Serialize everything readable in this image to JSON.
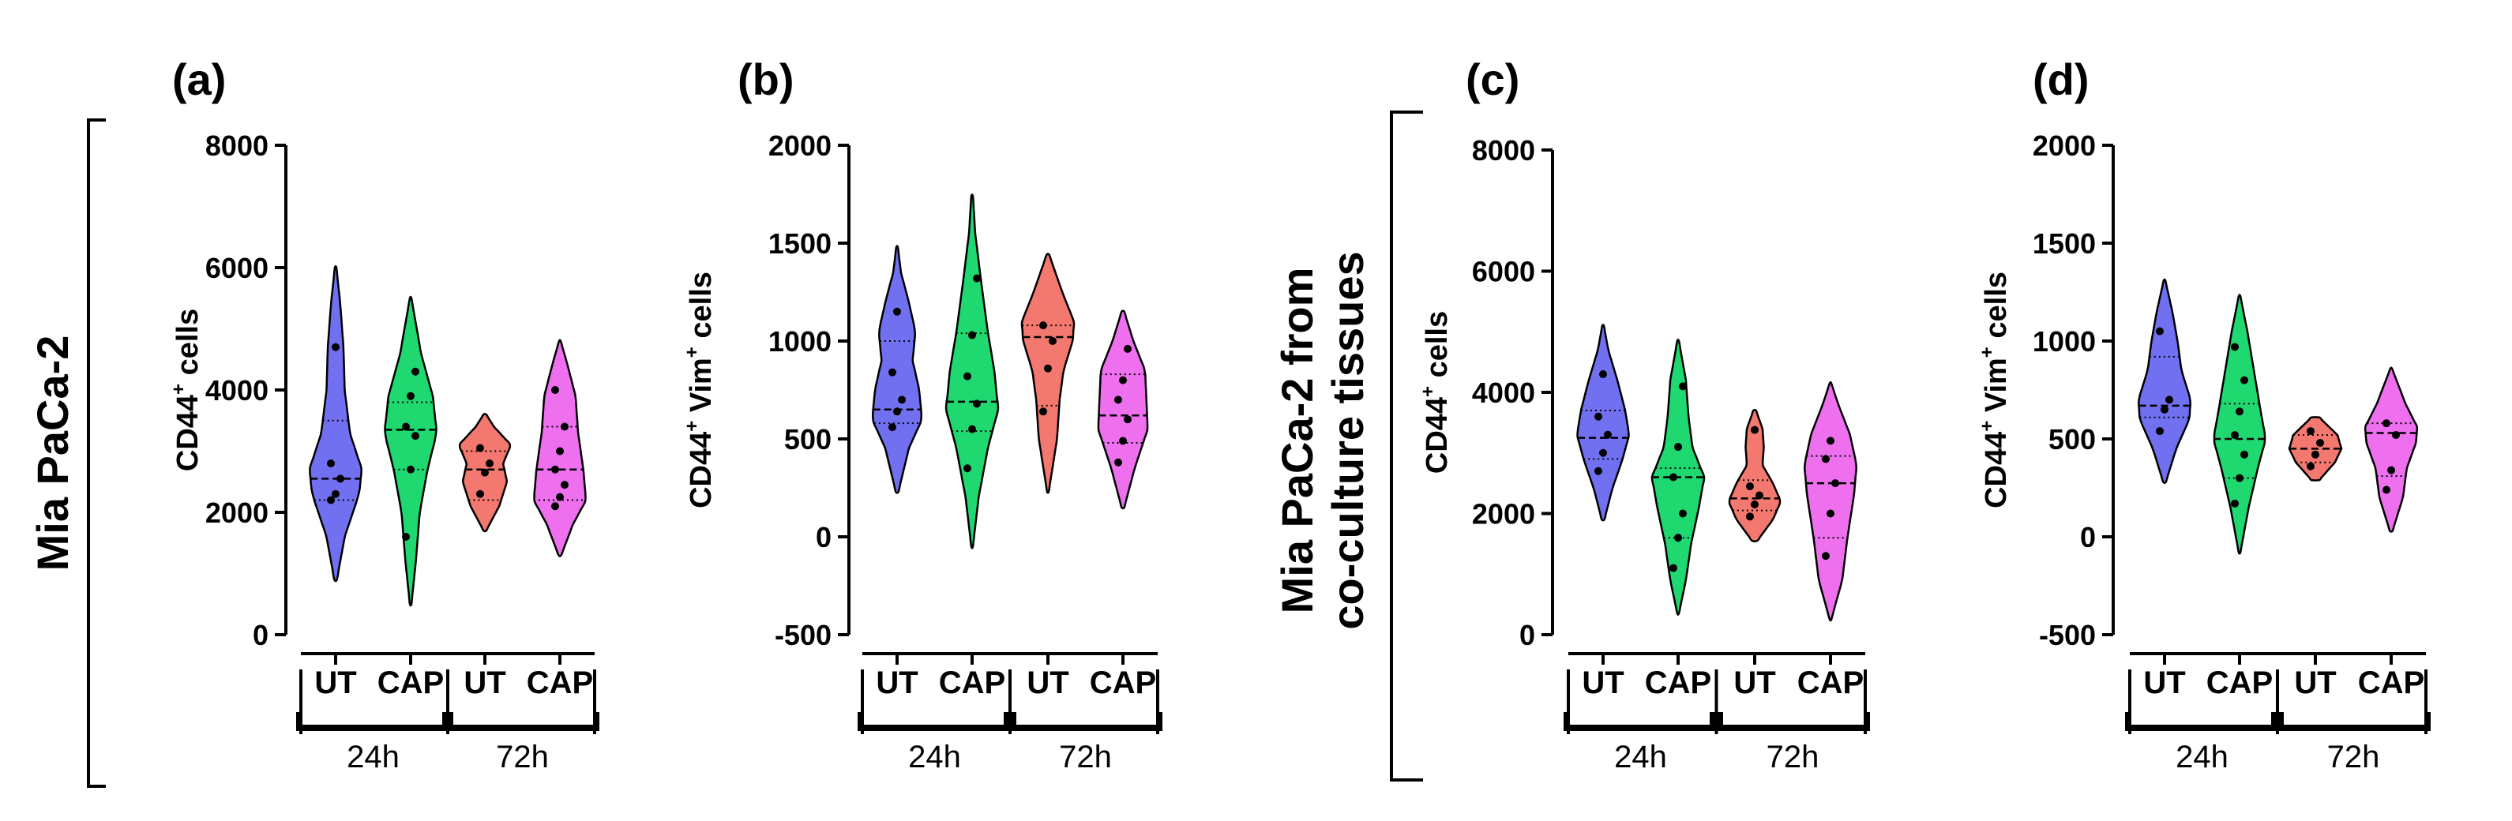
{
  "side_labels": {
    "left": "Mia  PaCa-2",
    "middle_line1": "Mia  PaCa-2 from",
    "middle_line2": "co-culture tissues"
  },
  "style": {
    "colors": [
      "#7070f0",
      "#20d870",
      "#f27870",
      "#ee70ee"
    ],
    "point_color": "#000000",
    "outline_color": "#000000"
  },
  "chart_data": [
    {
      "type": "violin",
      "panel": "(a)",
      "ylabel": {
        "main": "CD44",
        "sup": "+",
        "rest": " cells"
      },
      "ylim": [
        0,
        8000
      ],
      "yticks": [
        0,
        2000,
        4000,
        6000,
        8000
      ],
      "ytick_labels": [
        "0",
        "2000",
        "4000",
        "6000",
        "8000"
      ],
      "categories": [
        "UT",
        "CAP",
        "UT",
        "CAP"
      ],
      "groups": [
        {
          "label": "24h",
          "span": [
            0,
            1
          ]
        },
        {
          "label": "72h",
          "span": [
            2,
            3
          ]
        }
      ],
      "series": [
        {
          "name": "UT 24h",
          "min": 900,
          "max": 6000,
          "median": 2550,
          "q1": 2200,
          "q3": 3500,
          "profile": [
            [
              900,
              0.05
            ],
            [
              1600,
              0.35
            ],
            [
              2300,
              0.9
            ],
            [
              2700,
              1.0
            ],
            [
              3300,
              0.55
            ],
            [
              4000,
              0.35
            ],
            [
              4700,
              0.3
            ],
            [
              5400,
              0.18
            ],
            [
              6000,
              0.03
            ]
          ],
          "points": [
            2200,
            2300,
            2550,
            2800,
            4700
          ]
        },
        {
          "name": "CAP 24h",
          "min": 500,
          "max": 5500,
          "median": 3350,
          "q1": 2700,
          "q3": 3800,
          "profile": [
            [
              500,
              0.03
            ],
            [
              1200,
              0.2
            ],
            [
              2000,
              0.35
            ],
            [
              2700,
              0.65
            ],
            [
              3300,
              1.0
            ],
            [
              3900,
              0.85
            ],
            [
              4600,
              0.4
            ],
            [
              5500,
              0.03
            ]
          ],
          "points": [
            1600,
            2700,
            3250,
            3400,
            3900,
            4300
          ]
        },
        {
          "name": "UT 72h",
          "min": 1700,
          "max": 3600,
          "median": 2700,
          "q1": 2200,
          "q3": 3000,
          "profile": [
            [
              1700,
              0.05
            ],
            [
              2100,
              0.55
            ],
            [
              2500,
              0.85
            ],
            [
              2800,
              0.7
            ],
            [
              3100,
              1.0
            ],
            [
              3400,
              0.35
            ],
            [
              3600,
              0.05
            ]
          ],
          "points": [
            2300,
            2650,
            2800,
            3050
          ]
        },
        {
          "name": "CAP 72h",
          "min": 1300,
          "max": 4800,
          "median": 2700,
          "q1": 2200,
          "q3": 3400,
          "profile": [
            [
              1300,
              0.05
            ],
            [
              1800,
              0.5
            ],
            [
              2200,
              1.0
            ],
            [
              2700,
              0.9
            ],
            [
              3300,
              0.7
            ],
            [
              3900,
              0.6
            ],
            [
              4400,
              0.3
            ],
            [
              4800,
              0.03
            ]
          ],
          "points": [
            2100,
            2250,
            2450,
            2700,
            3000,
            3400,
            4000
          ]
        }
      ]
    },
    {
      "type": "violin",
      "panel": "(b)",
      "ylabel": {
        "main": "CD44",
        "sup": "+",
        "mid": " Vim",
        "sup2": "+",
        "rest": " cells"
      },
      "ylim": [
        -500,
        2000
      ],
      "yticks": [
        -500,
        0,
        500,
        1000,
        1500,
        2000
      ],
      "ytick_labels": [
        "-500",
        "0",
        "500",
        "1000",
        "1500",
        "2000"
      ],
      "categories": [
        "UT",
        "CAP",
        "UT",
        "CAP"
      ],
      "groups": [
        {
          "label": "24h",
          "span": [
            0,
            1
          ]
        },
        {
          "label": "72h",
          "span": [
            2,
            3
          ]
        }
      ],
      "series": [
        {
          "name": "UT 24h",
          "min": 230,
          "max": 1480,
          "median": 650,
          "q1": 580,
          "q3": 1000,
          "profile": [
            [
              230,
              0.05
            ],
            [
              450,
              0.45
            ],
            [
              600,
              0.95
            ],
            [
              750,
              0.85
            ],
            [
              900,
              0.6
            ],
            [
              1050,
              0.7
            ],
            [
              1200,
              0.45
            ],
            [
              1350,
              0.15
            ],
            [
              1480,
              0.03
            ]
          ],
          "points": [
            560,
            640,
            700,
            840,
            1150
          ]
        },
        {
          "name": "CAP 24h",
          "min": -50,
          "max": 1740,
          "median": 690,
          "q1": 540,
          "q3": 1040,
          "profile": [
            [
              -50,
              0.03
            ],
            [
              200,
              0.25
            ],
            [
              450,
              0.6
            ],
            [
              650,
              1.0
            ],
            [
              850,
              0.85
            ],
            [
              1050,
              0.6
            ],
            [
              1300,
              0.35
            ],
            [
              1550,
              0.12
            ],
            [
              1740,
              0.03
            ]
          ],
          "points": [
            350,
            550,
            680,
            820,
            1030,
            1320
          ]
        },
        {
          "name": "UT 72h",
          "min": 230,
          "max": 1440,
          "median": 1020,
          "q1": 670,
          "q3": 1080,
          "profile": [
            [
              230,
              0.03
            ],
            [
              500,
              0.35
            ],
            [
              700,
              0.45
            ],
            [
              850,
              0.6
            ],
            [
              1000,
              0.95
            ],
            [
              1100,
              1.0
            ],
            [
              1250,
              0.55
            ],
            [
              1440,
              0.05
            ]
          ],
          "points": [
            640,
            860,
            1000,
            1080
          ]
        },
        {
          "name": "CAP 72h",
          "min": 150,
          "max": 1150,
          "median": 620,
          "q1": 480,
          "q3": 830,
          "profile": [
            [
              150,
              0.05
            ],
            [
              350,
              0.45
            ],
            [
              550,
              0.95
            ],
            [
              700,
              0.9
            ],
            [
              850,
              0.85
            ],
            [
              1000,
              0.4
            ],
            [
              1150,
              0.05
            ]
          ],
          "points": [
            380,
            490,
            600,
            700,
            800,
            960
          ]
        }
      ]
    },
    {
      "type": "violin",
      "panel": "(c)",
      "ylabel": {
        "main": "CD44",
        "sup": "+",
        "rest": " cells"
      },
      "ylim": [
        0,
        8000
      ],
      "yticks": [
        0,
        2000,
        4000,
        6000,
        8000
      ],
      "ytick_labels": [
        "0",
        "2000",
        "4000",
        "6000",
        "8000"
      ],
      "categories": [
        "UT",
        "CAP",
        "UT",
        "CAP"
      ],
      "groups": [
        {
          "label": "24h",
          "span": [
            0,
            1
          ]
        },
        {
          "label": "72h",
          "span": [
            2,
            3
          ]
        }
      ],
      "series": [
        {
          "name": "UT 24h",
          "min": 1900,
          "max": 5100,
          "median": 3250,
          "q1": 2900,
          "q3": 3700,
          "profile": [
            [
              1900,
              0.05
            ],
            [
              2400,
              0.35
            ],
            [
              2900,
              0.75
            ],
            [
              3300,
              1.0
            ],
            [
              3700,
              0.85
            ],
            [
              4200,
              0.55
            ],
            [
              4700,
              0.2
            ],
            [
              5100,
              0.03
            ]
          ],
          "points": [
            2700,
            3000,
            3300,
            3600,
            4300
          ]
        },
        {
          "name": "CAP 24h",
          "min": 350,
          "max": 4850,
          "median": 2600,
          "q1": 1600,
          "q3": 2750,
          "profile": [
            [
              350,
              0.03
            ],
            [
              900,
              0.3
            ],
            [
              1500,
              0.5
            ],
            [
              2100,
              0.8
            ],
            [
              2600,
              1.0
            ],
            [
              3100,
              0.55
            ],
            [
              3600,
              0.4
            ],
            [
              4200,
              0.3
            ],
            [
              4850,
              0.03
            ]
          ],
          "points": [
            1100,
            1600,
            2000,
            2600,
            3100,
            4100
          ]
        },
        {
          "name": "UT 72h",
          "min": 1550,
          "max": 3700,
          "median": 2250,
          "q1": 2050,
          "q3": 2550,
          "profile": [
            [
              1550,
              0.1
            ],
            [
              1900,
              0.7
            ],
            [
              2200,
              1.0
            ],
            [
              2500,
              0.7
            ],
            [
              2800,
              0.3
            ],
            [
              3100,
              0.35
            ],
            [
              3400,
              0.3
            ],
            [
              3700,
              0.05
            ]
          ],
          "points": [
            1950,
            2150,
            2300,
            2450,
            3380
          ]
        },
        {
          "name": "CAP 72h",
          "min": 250,
          "max": 4150,
          "median": 2500,
          "q1": 1600,
          "q3": 2950,
          "profile": [
            [
              250,
              0.03
            ],
            [
              900,
              0.45
            ],
            [
              1600,
              0.65
            ],
            [
              2300,
              0.9
            ],
            [
              2800,
              1.0
            ],
            [
              3300,
              0.75
            ],
            [
              3800,
              0.3
            ],
            [
              4150,
              0.03
            ]
          ],
          "points": [
            1300,
            2000,
            2500,
            2900,
            3200
          ]
        }
      ]
    },
    {
      "type": "violin",
      "panel": "(d)",
      "ylabel": {
        "main": "CD44",
        "sup": "+",
        "mid": " Vim",
        "sup2": "+",
        "rest": " cells"
      },
      "ylim": [
        -500,
        2000
      ],
      "yticks": [
        -500,
        0,
        500,
        1000,
        1500,
        2000
      ],
      "ytick_labels": [
        "-500",
        "0",
        "500",
        "1000",
        "1500",
        "2000"
      ],
      "categories": [
        "UT",
        "CAP",
        "UT",
        "CAP"
      ],
      "groups": [
        {
          "label": "24h",
          "span": [
            0,
            1
          ]
        },
        {
          "label": "72h",
          "span": [
            2,
            3
          ]
        }
      ],
      "series": [
        {
          "name": "UT 24h",
          "min": 280,
          "max": 1310,
          "median": 670,
          "q1": 610,
          "q3": 920,
          "profile": [
            [
              280,
              0.05
            ],
            [
              450,
              0.45
            ],
            [
              600,
              0.95
            ],
            [
              700,
              1.0
            ],
            [
              850,
              0.65
            ],
            [
              1000,
              0.5
            ],
            [
              1150,
              0.3
            ],
            [
              1310,
              0.03
            ]
          ],
          "points": [
            540,
            650,
            700,
            1050
          ]
        },
        {
          "name": "CAP 24h",
          "min": -80,
          "max": 1230,
          "median": 500,
          "q1": 300,
          "q3": 680,
          "profile": [
            [
              -80,
              0.03
            ],
            [
              150,
              0.35
            ],
            [
              350,
              0.7
            ],
            [
              500,
              1.0
            ],
            [
              650,
              0.8
            ],
            [
              850,
              0.55
            ],
            [
              1050,
              0.3
            ],
            [
              1230,
              0.03
            ]
          ],
          "points": [
            170,
            300,
            420,
            520,
            640,
            800,
            970
          ]
        },
        {
          "name": "UT 72h",
          "min": 290,
          "max": 610,
          "median": 450,
          "q1": 380,
          "q3": 520,
          "profile": [
            [
              290,
              0.15
            ],
            [
              380,
              0.75
            ],
            [
              450,
              1.0
            ],
            [
              520,
              0.85
            ],
            [
              610,
              0.15
            ]
          ],
          "points": [
            360,
            420,
            480,
            540
          ]
        },
        {
          "name": "CAP 72h",
          "min": 30,
          "max": 860,
          "median": 530,
          "q1": 310,
          "q3": 580,
          "profile": [
            [
              30,
              0.05
            ],
            [
              200,
              0.45
            ],
            [
              350,
              0.6
            ],
            [
              480,
              0.95
            ],
            [
              560,
              1.0
            ],
            [
              680,
              0.55
            ],
            [
              860,
              0.03
            ]
          ],
          "points": [
            240,
            340,
            520,
            580
          ]
        }
      ]
    }
  ]
}
